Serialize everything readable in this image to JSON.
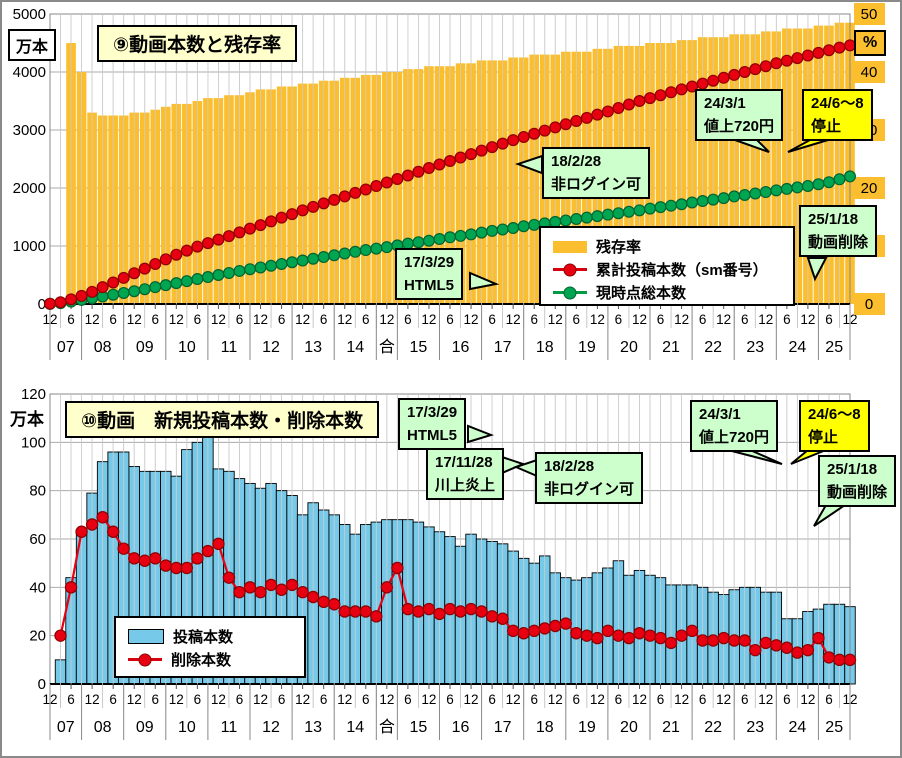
{
  "colors": {
    "survival_bar": "#FBBE2E",
    "cumulative_line": "#E60012",
    "current_line": "#00A551",
    "upload_bar": "#76C9E8",
    "deletion_line": "#E60012",
    "annotation_green": "#CCFFCC",
    "annotation_yellow": "#FFFF00",
    "title_bg": "#FFFFCC"
  },
  "chart_data": [
    {
      "type": "bar",
      "title": "⑨動画本数と残存率",
      "left_axis": {
        "unit": "万本",
        "min": 0,
        "max": 5000,
        "step": 1000
      },
      "right_axis": {
        "unit": "%",
        "min": 0,
        "max": 50,
        "step": 10
      },
      "x_tick_labels": [
        "12",
        "6",
        "12",
        "6",
        "12",
        "6",
        "12",
        "6",
        "12",
        "6",
        "12",
        "6",
        "12",
        "6",
        "12",
        "6",
        "12",
        "6",
        "12",
        "6",
        "12",
        "6",
        "12",
        "6",
        "12",
        "6",
        "12",
        "6",
        "12",
        "6",
        "12",
        "6",
        "12",
        "6",
        "12",
        "6",
        "12",
        "6",
        "12"
      ],
      "year_cells": [
        {
          "label": "07",
          "from": 0,
          "to": 3
        },
        {
          "label": "08",
          "from": 3,
          "to": 7
        },
        {
          "label": "09",
          "from": 7,
          "to": 11
        },
        {
          "label": "10",
          "from": 11,
          "to": 15
        },
        {
          "label": "11",
          "from": 15,
          "to": 19
        },
        {
          "label": "12",
          "from": 19,
          "to": 23
        },
        {
          "label": "13",
          "from": 23,
          "to": 27
        },
        {
          "label": "14",
          "from": 27,
          "to": 31
        },
        {
          "label": "合",
          "from": 31,
          "to": 33
        },
        {
          "label": "15",
          "from": 33,
          "to": 37
        },
        {
          "label": "16",
          "from": 37,
          "to": 41
        },
        {
          "label": "17",
          "from": 41,
          "to": 45
        },
        {
          "label": "18",
          "from": 45,
          "to": 49
        },
        {
          "label": "19",
          "from": 49,
          "to": 53
        },
        {
          "label": "20",
          "from": 53,
          "to": 57
        },
        {
          "label": "21",
          "from": 57,
          "to": 61
        },
        {
          "label": "22",
          "from": 61,
          "to": 65
        },
        {
          "label": "23",
          "from": 65,
          "to": 69
        },
        {
          "label": "24",
          "from": 69,
          "to": 73
        },
        {
          "label": "25",
          "from": 73,
          "to": 76
        }
      ],
      "series": [
        {
          "name": "残存率",
          "type": "bar",
          "axis": "right",
          "color": "#FBBE2E",
          "values": [
            null,
            null,
            45,
            40,
            33,
            32.5,
            32.5,
            32.5,
            33,
            33,
            33.5,
            34,
            34.5,
            34.5,
            35,
            35.5,
            35.5,
            36,
            36,
            36.5,
            37,
            37,
            37.5,
            37.5,
            38,
            38,
            38.5,
            38.5,
            39,
            39,
            39.5,
            39.5,
            40,
            40,
            40.5,
            40.5,
            41,
            41,
            41,
            41.5,
            41.5,
            42,
            42,
            42,
            42.5,
            42.5,
            43,
            43,
            43,
            43.5,
            43.5,
            43.5,
            44,
            44,
            44.5,
            44.5,
            44.5,
            45,
            45,
            45,
            45.5,
            45.5,
            46,
            46,
            46,
            46.5,
            46.5,
            46.5,
            47,
            47,
            47.5,
            47.5,
            47.5,
            48,
            48,
            48.5,
            48.5
          ]
        },
        {
          "name": "累計投稿本数（sm番号）",
          "type": "line",
          "axis": "left",
          "color": "#E60012",
          "values": [
            5,
            30,
            80,
            140,
            210,
            290,
            370,
            450,
            530,
            610,
            690,
            770,
            850,
            920,
            990,
            1050,
            1110,
            1170,
            1235,
            1300,
            1360,
            1425,
            1490,
            1550,
            1615,
            1675,
            1735,
            1795,
            1855,
            1915,
            1975,
            2035,
            2095,
            2155,
            2215,
            2280,
            2345,
            2405,
            2465,
            2525,
            2585,
            2645,
            2705,
            2765,
            2825,
            2880,
            2935,
            2990,
            3045,
            3100,
            3155,
            3210,
            3265,
            3320,
            3380,
            3440,
            3500,
            3550,
            3600,
            3650,
            3700,
            3750,
            3800,
            3850,
            3900,
            3950,
            4000,
            4050,
            4100,
            4150,
            4195,
            4240,
            4285,
            4330,
            4375,
            4420,
            4460
          ]
        },
        {
          "name": "現時点総本数",
          "type": "line",
          "axis": "left",
          "color": "#00A551",
          "values": [
            3,
            15,
            40,
            70,
            100,
            130,
            160,
            190,
            220,
            255,
            290,
            325,
            360,
            395,
            430,
            465,
            500,
            535,
            570,
            600,
            630,
            660,
            690,
            720,
            750,
            780,
            810,
            840,
            870,
            900,
            930,
            955,
            980,
            1010,
            1040,
            1065,
            1090,
            1120,
            1150,
            1175,
            1200,
            1230,
            1260,
            1285,
            1310,
            1340,
            1365,
            1390,
            1415,
            1440,
            1465,
            1490,
            1515,
            1540,
            1565,
            1590,
            1615,
            1645,
            1670,
            1695,
            1720,
            1750,
            1775,
            1800,
            1825,
            1855,
            1880,
            1905,
            1930,
            1960,
            1985,
            2010,
            2035,
            2065,
            2100,
            2150,
            2200
          ]
        }
      ],
      "annotations": [
        {
          "lines": [
            "17/3/29",
            "HTML5"
          ],
          "color": "#CCFFCC"
        },
        {
          "lines": [
            "18/2/28",
            "非ログイン可"
          ],
          "color": "#CCFFCC"
        },
        {
          "lines": [
            "24/3/1",
            "値上720円"
          ],
          "color": "#CCFFCC"
        },
        {
          "lines": [
            "24/6～8",
            "停止"
          ],
          "color": "#FFFF00"
        },
        {
          "lines": [
            "25/1/18",
            "動画削除"
          ],
          "color": "#CCFFCC"
        }
      ]
    },
    {
      "type": "bar",
      "title": "⑩動画　新規投稿本数・削除本数",
      "left_axis": {
        "unit": "万本",
        "min": 0,
        "max": 120,
        "step": 20
      },
      "x_tick_labels": [
        "12",
        "6",
        "12",
        "6",
        "12",
        "6",
        "12",
        "6",
        "12",
        "6",
        "12",
        "6",
        "12",
        "6",
        "12",
        "6",
        "12",
        "6",
        "12",
        "6",
        "12",
        "6",
        "12",
        "6",
        "12",
        "6",
        "12",
        "6",
        "12",
        "6",
        "12",
        "6",
        "12",
        "6",
        "12",
        "6",
        "12",
        "6",
        "12"
      ],
      "year_cells": [
        {
          "label": "07",
          "from": 0,
          "to": 3
        },
        {
          "label": "08",
          "from": 3,
          "to": 7
        },
        {
          "label": "09",
          "from": 7,
          "to": 11
        },
        {
          "label": "10",
          "from": 11,
          "to": 15
        },
        {
          "label": "11",
          "from": 15,
          "to": 19
        },
        {
          "label": "12",
          "from": 19,
          "to": 23
        },
        {
          "label": "13",
          "from": 23,
          "to": 27
        },
        {
          "label": "14",
          "from": 27,
          "to": 31
        },
        {
          "label": "合",
          "from": 31,
          "to": 33
        },
        {
          "label": "15",
          "from": 33,
          "to": 37
        },
        {
          "label": "16",
          "from": 37,
          "to": 41
        },
        {
          "label": "17",
          "from": 41,
          "to": 45
        },
        {
          "label": "18",
          "from": 45,
          "to": 49
        },
        {
          "label": "19",
          "from": 49,
          "to": 53
        },
        {
          "label": "20",
          "from": 53,
          "to": 57
        },
        {
          "label": "21",
          "from": 57,
          "to": 61
        },
        {
          "label": "22",
          "from": 61,
          "to": 65
        },
        {
          "label": "23",
          "from": 65,
          "to": 69
        },
        {
          "label": "24",
          "from": 69,
          "to": 73
        },
        {
          "label": "25",
          "from": 73,
          "to": 76
        }
      ],
      "series": [
        {
          "name": "投稿本数",
          "type": "bar",
          "axis": "left",
          "color": "#76C9E8",
          "values": [
            null,
            10,
            44,
            63,
            79,
            92,
            96,
            96,
            90,
            88,
            88,
            88,
            86,
            97,
            100,
            105,
            89,
            88,
            85,
            83,
            81,
            83,
            80,
            78,
            70,
            75,
            72,
            70,
            66,
            62,
            66,
            67,
            68,
            68,
            68,
            67,
            65,
            63,
            61,
            57,
            62,
            60,
            59,
            58,
            55,
            52,
            50,
            53,
            46,
            44,
            43,
            44,
            46,
            48,
            51,
            45,
            47,
            45,
            44,
            41,
            41,
            41,
            40,
            38,
            37,
            39,
            40,
            40,
            38,
            38,
            27,
            27,
            30,
            31,
            33,
            33,
            32
          ]
        },
        {
          "name": "削除本数",
          "type": "line",
          "axis": "left",
          "color": "#E60012",
          "values": [
            null,
            20,
            40,
            63,
            66,
            69,
            63,
            56,
            52,
            51,
            52,
            49,
            48,
            48,
            52,
            55,
            58,
            44,
            38,
            40,
            38,
            41,
            39,
            41,
            38,
            36,
            34,
            33,
            30,
            30,
            30,
            28,
            40,
            48,
            31,
            30,
            31,
            29,
            31,
            30,
            31,
            30,
            28,
            27,
            22,
            21,
            22,
            23,
            24,
            25,
            21,
            20,
            19,
            22,
            20,
            19,
            21,
            20,
            19,
            17,
            20,
            22,
            18,
            18,
            19,
            18,
            18,
            14,
            17,
            16,
            15,
            13,
            14,
            19,
            11,
            10,
            10
          ]
        }
      ],
      "annotations": [
        {
          "lines": [
            "17/3/29",
            "HTML5"
          ],
          "color": "#CCFFCC"
        },
        {
          "lines": [
            "17/11/28",
            "川上炎上"
          ],
          "color": "#CCFFCC"
        },
        {
          "lines": [
            "18/2/28",
            "非ログイン可"
          ],
          "color": "#CCFFCC"
        },
        {
          "lines": [
            "24/3/1",
            "値上720円"
          ],
          "color": "#CCFFCC"
        },
        {
          "lines": [
            "24/6～8",
            "停止"
          ],
          "color": "#FFFF00"
        },
        {
          "lines": [
            "25/1/18",
            "動画削除"
          ],
          "color": "#CCFFCC"
        }
      ]
    }
  ]
}
